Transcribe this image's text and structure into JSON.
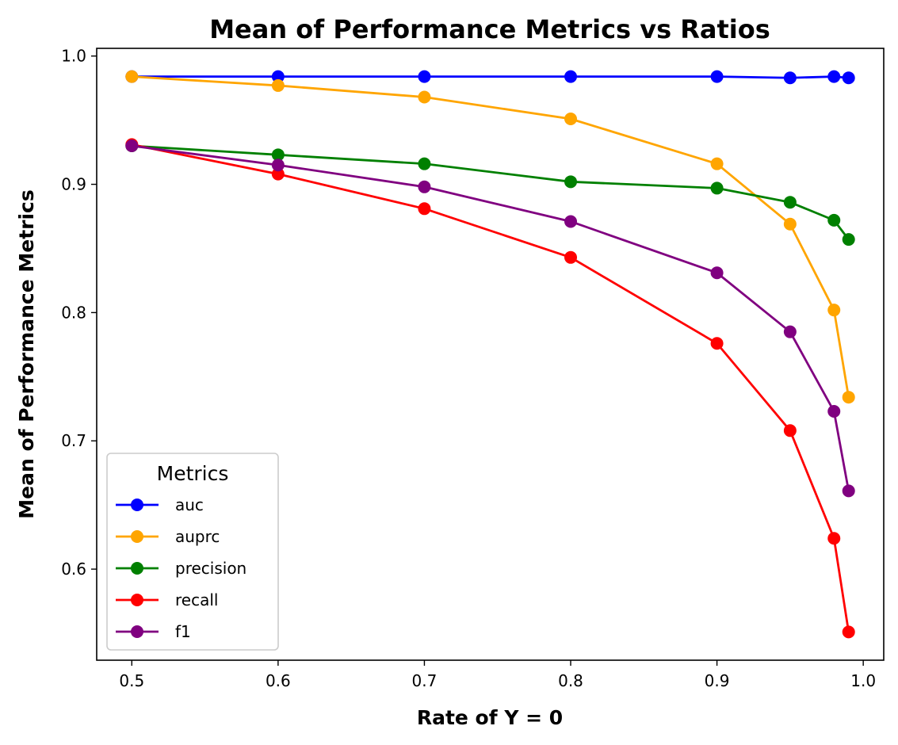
{
  "chart_data": {
    "type": "line",
    "title": "Mean of Performance Metrics vs Ratios",
    "xlabel": "Rate of Y = 0",
    "ylabel": "Mean of Performance Metrics",
    "xlim": [
      0.476,
      1.014
    ],
    "ylim": [
      0.529,
      1.006
    ],
    "x_ticks": [
      0.5,
      0.6,
      0.7,
      0.8,
      0.9,
      1.0
    ],
    "x_tick_labels": [
      "0.5",
      "0.6",
      "0.7",
      "0.8",
      "0.9",
      "1.0"
    ],
    "y_ticks": [
      0.6,
      0.7,
      0.8,
      0.9,
      1.0
    ],
    "y_tick_labels": [
      "0.6",
      "0.7",
      "0.8",
      "0.9",
      "1.0"
    ],
    "grid": false,
    "legend": {
      "title": "Metrics",
      "placement": "lower-left"
    },
    "x": [
      0.5,
      0.6,
      0.7,
      0.8,
      0.9,
      0.95,
      0.98,
      0.99
    ],
    "series": [
      {
        "name": "auc",
        "color": "#0000ff",
        "values": [
          0.984,
          0.984,
          0.984,
          0.984,
          0.984,
          0.983,
          0.984,
          0.983
        ]
      },
      {
        "name": "auprc",
        "color": "#ffa500",
        "values": [
          0.984,
          0.977,
          0.968,
          0.951,
          0.916,
          0.869,
          0.802,
          0.734
        ]
      },
      {
        "name": "precision",
        "color": "#008000",
        "values": [
          0.93,
          0.923,
          0.916,
          0.902,
          0.897,
          0.886,
          0.872,
          0.857
        ]
      },
      {
        "name": "recall",
        "color": "#ff0000",
        "values": [
          0.931,
          0.908,
          0.881,
          0.843,
          0.776,
          0.708,
          0.624,
          0.551
        ]
      },
      {
        "name": "f1",
        "color": "#800080",
        "values": [
          0.93,
          0.915,
          0.898,
          0.871,
          0.831,
          0.785,
          0.723,
          0.661
        ]
      }
    ]
  }
}
